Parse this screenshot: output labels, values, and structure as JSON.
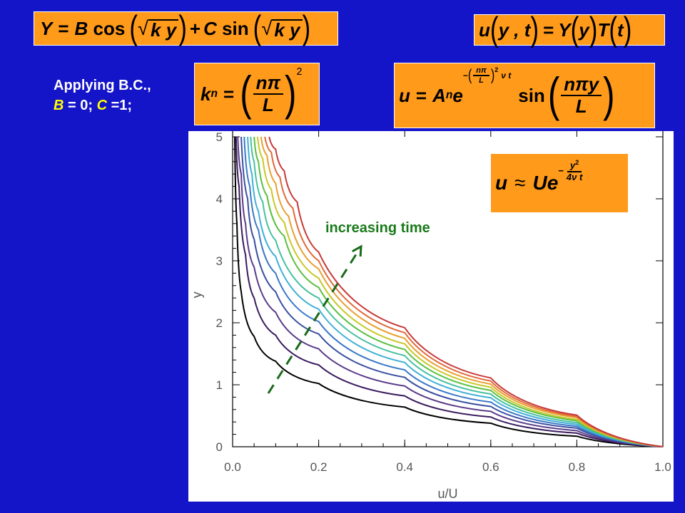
{
  "equations": {
    "general": {
      "lhs": "Y",
      "b_coef": "B",
      "cos": "cos",
      "c_coef": "C",
      "sin": "sin",
      "k": "k",
      "y": "y"
    },
    "separation": {
      "u": "u",
      "args": "y , t",
      "Y": "Y",
      "Yarg": "y",
      "T": "T",
      "Targ": "t"
    },
    "eigen": {
      "k": "k",
      "n_sub": "n",
      "num": "nπ",
      "den": "L",
      "exp": "2"
    },
    "solution": {
      "u": "u",
      "A": "A",
      "n_sub": "n",
      "e": "e",
      "exp_num": "nπ",
      "exp_den": "L",
      "exp_pow": "2",
      "exp_tail": "ν t",
      "sin": "sin",
      "num": "nπy",
      "den": "L"
    },
    "similarity": {
      "u": "u",
      "approx": "≈",
      "Ue": "Ue",
      "exp_num": "y",
      "exp_num_pow": "2",
      "exp_den": "4ν t"
    }
  },
  "bc_text": {
    "line1": "Applying B.C.,",
    "B": "B",
    "eq1": " = 0; ",
    "C": "C",
    "eq2": " =1;"
  },
  "annotation": "increasing time",
  "chart_data": {
    "type": "line",
    "xlabel": "u/U",
    "ylabel": "y",
    "xlim": [
      0.0,
      1.0
    ],
    "ylim": [
      0,
      5
    ],
    "x_ticks": [
      "0.0",
      "0.2",
      "0.4",
      "0.6",
      "0.8",
      "1.0"
    ],
    "y_ticks": [
      "0",
      "1",
      "2",
      "3",
      "4",
      "5"
    ],
    "grid": false,
    "legend": "none",
    "series": [
      {
        "color": "#000000",
        "points": [
          [
            1.0,
            0
          ],
          [
            0.8,
            0.17
          ],
          [
            0.6,
            0.38
          ],
          [
            0.4,
            0.64
          ],
          [
            0.2,
            1.02
          ],
          [
            0.1,
            1.38
          ],
          [
            0.05,
            1.78
          ],
          [
            0.02,
            2.5
          ],
          [
            0.01,
            3.6
          ],
          [
            0.005,
            5.0
          ]
        ]
      },
      {
        "color": "#3a1a5e",
        "points": [
          [
            1.0,
            0
          ],
          [
            0.8,
            0.22
          ],
          [
            0.6,
            0.48
          ],
          [
            0.4,
            0.82
          ],
          [
            0.2,
            1.32
          ],
          [
            0.1,
            1.8
          ],
          [
            0.05,
            2.4
          ],
          [
            0.03,
            3.1
          ],
          [
            0.015,
            4.2
          ],
          [
            0.008,
            5.0
          ]
        ]
      },
      {
        "color": "#5a3a8a",
        "points": [
          [
            1.0,
            0
          ],
          [
            0.8,
            0.26
          ],
          [
            0.6,
            0.57
          ],
          [
            0.4,
            0.98
          ],
          [
            0.2,
            1.58
          ],
          [
            0.1,
            2.17
          ],
          [
            0.05,
            2.9
          ],
          [
            0.03,
            3.6
          ],
          [
            0.02,
            4.4
          ],
          [
            0.012,
            5.0
          ]
        ]
      },
      {
        "color": "#3a4fa0",
        "points": [
          [
            1.0,
            0
          ],
          [
            0.8,
            0.3
          ],
          [
            0.6,
            0.65
          ],
          [
            0.4,
            1.12
          ],
          [
            0.2,
            1.82
          ],
          [
            0.1,
            2.5
          ],
          [
            0.05,
            3.35
          ],
          [
            0.035,
            4.0
          ],
          [
            0.02,
            5.0
          ]
        ]
      },
      {
        "color": "#3a78c8",
        "points": [
          [
            1.0,
            0
          ],
          [
            0.8,
            0.33
          ],
          [
            0.6,
            0.72
          ],
          [
            0.4,
            1.24
          ],
          [
            0.2,
            2.02
          ],
          [
            0.1,
            2.8
          ],
          [
            0.06,
            3.5
          ],
          [
            0.04,
            4.2
          ],
          [
            0.027,
            5.0
          ]
        ]
      },
      {
        "color": "#40b0d8",
        "points": [
          [
            1.0,
            0
          ],
          [
            0.8,
            0.36
          ],
          [
            0.6,
            0.79
          ],
          [
            0.4,
            1.36
          ],
          [
            0.2,
            2.22
          ],
          [
            0.1,
            3.07
          ],
          [
            0.06,
            3.8
          ],
          [
            0.045,
            4.4
          ],
          [
            0.035,
            5.0
          ]
        ]
      },
      {
        "color": "#48c0a0",
        "points": [
          [
            1.0,
            0
          ],
          [
            0.8,
            0.39
          ],
          [
            0.6,
            0.85
          ],
          [
            0.4,
            1.47
          ],
          [
            0.2,
            2.4
          ],
          [
            0.1,
            3.33
          ],
          [
            0.07,
            3.95
          ],
          [
            0.05,
            4.6
          ],
          [
            0.042,
            5.0
          ]
        ]
      },
      {
        "color": "#5ac040",
        "points": [
          [
            1.0,
            0
          ],
          [
            0.8,
            0.42
          ],
          [
            0.6,
            0.91
          ],
          [
            0.4,
            1.57
          ],
          [
            0.2,
            2.57
          ],
          [
            0.12,
            3.4
          ],
          [
            0.08,
            4.05
          ],
          [
            0.06,
            4.6
          ],
          [
            0.05,
            5.0
          ]
        ]
      },
      {
        "color": "#c8c828",
        "points": [
          [
            1.0,
            0
          ],
          [
            0.8,
            0.44
          ],
          [
            0.6,
            0.96
          ],
          [
            0.4,
            1.66
          ],
          [
            0.2,
            2.72
          ],
          [
            0.12,
            3.62
          ],
          [
            0.09,
            4.15
          ],
          [
            0.07,
            4.65
          ],
          [
            0.058,
            5.0
          ]
        ]
      },
      {
        "color": "#e8a030",
        "points": [
          [
            1.0,
            0
          ],
          [
            0.8,
            0.47
          ],
          [
            0.6,
            1.01
          ],
          [
            0.4,
            1.75
          ],
          [
            0.2,
            2.87
          ],
          [
            0.13,
            3.72
          ],
          [
            0.1,
            4.25
          ],
          [
            0.08,
            4.7
          ],
          [
            0.066,
            5.0
          ]
        ]
      },
      {
        "color": "#e06a3a",
        "points": [
          [
            1.0,
            0
          ],
          [
            0.8,
            0.49
          ],
          [
            0.6,
            1.06
          ],
          [
            0.4,
            1.84
          ],
          [
            0.2,
            3.0
          ],
          [
            0.14,
            3.85
          ],
          [
            0.11,
            4.35
          ],
          [
            0.09,
            4.75
          ],
          [
            0.075,
            5.0
          ]
        ]
      },
      {
        "color": "#c83a3a",
        "points": [
          [
            1.0,
            0
          ],
          [
            0.8,
            0.51
          ],
          [
            0.6,
            1.11
          ],
          [
            0.4,
            1.92
          ],
          [
            0.2,
            3.14
          ],
          [
            0.15,
            3.95
          ],
          [
            0.12,
            4.45
          ],
          [
            0.1,
            4.8
          ],
          [
            0.085,
            5.0
          ]
        ]
      }
    ]
  }
}
